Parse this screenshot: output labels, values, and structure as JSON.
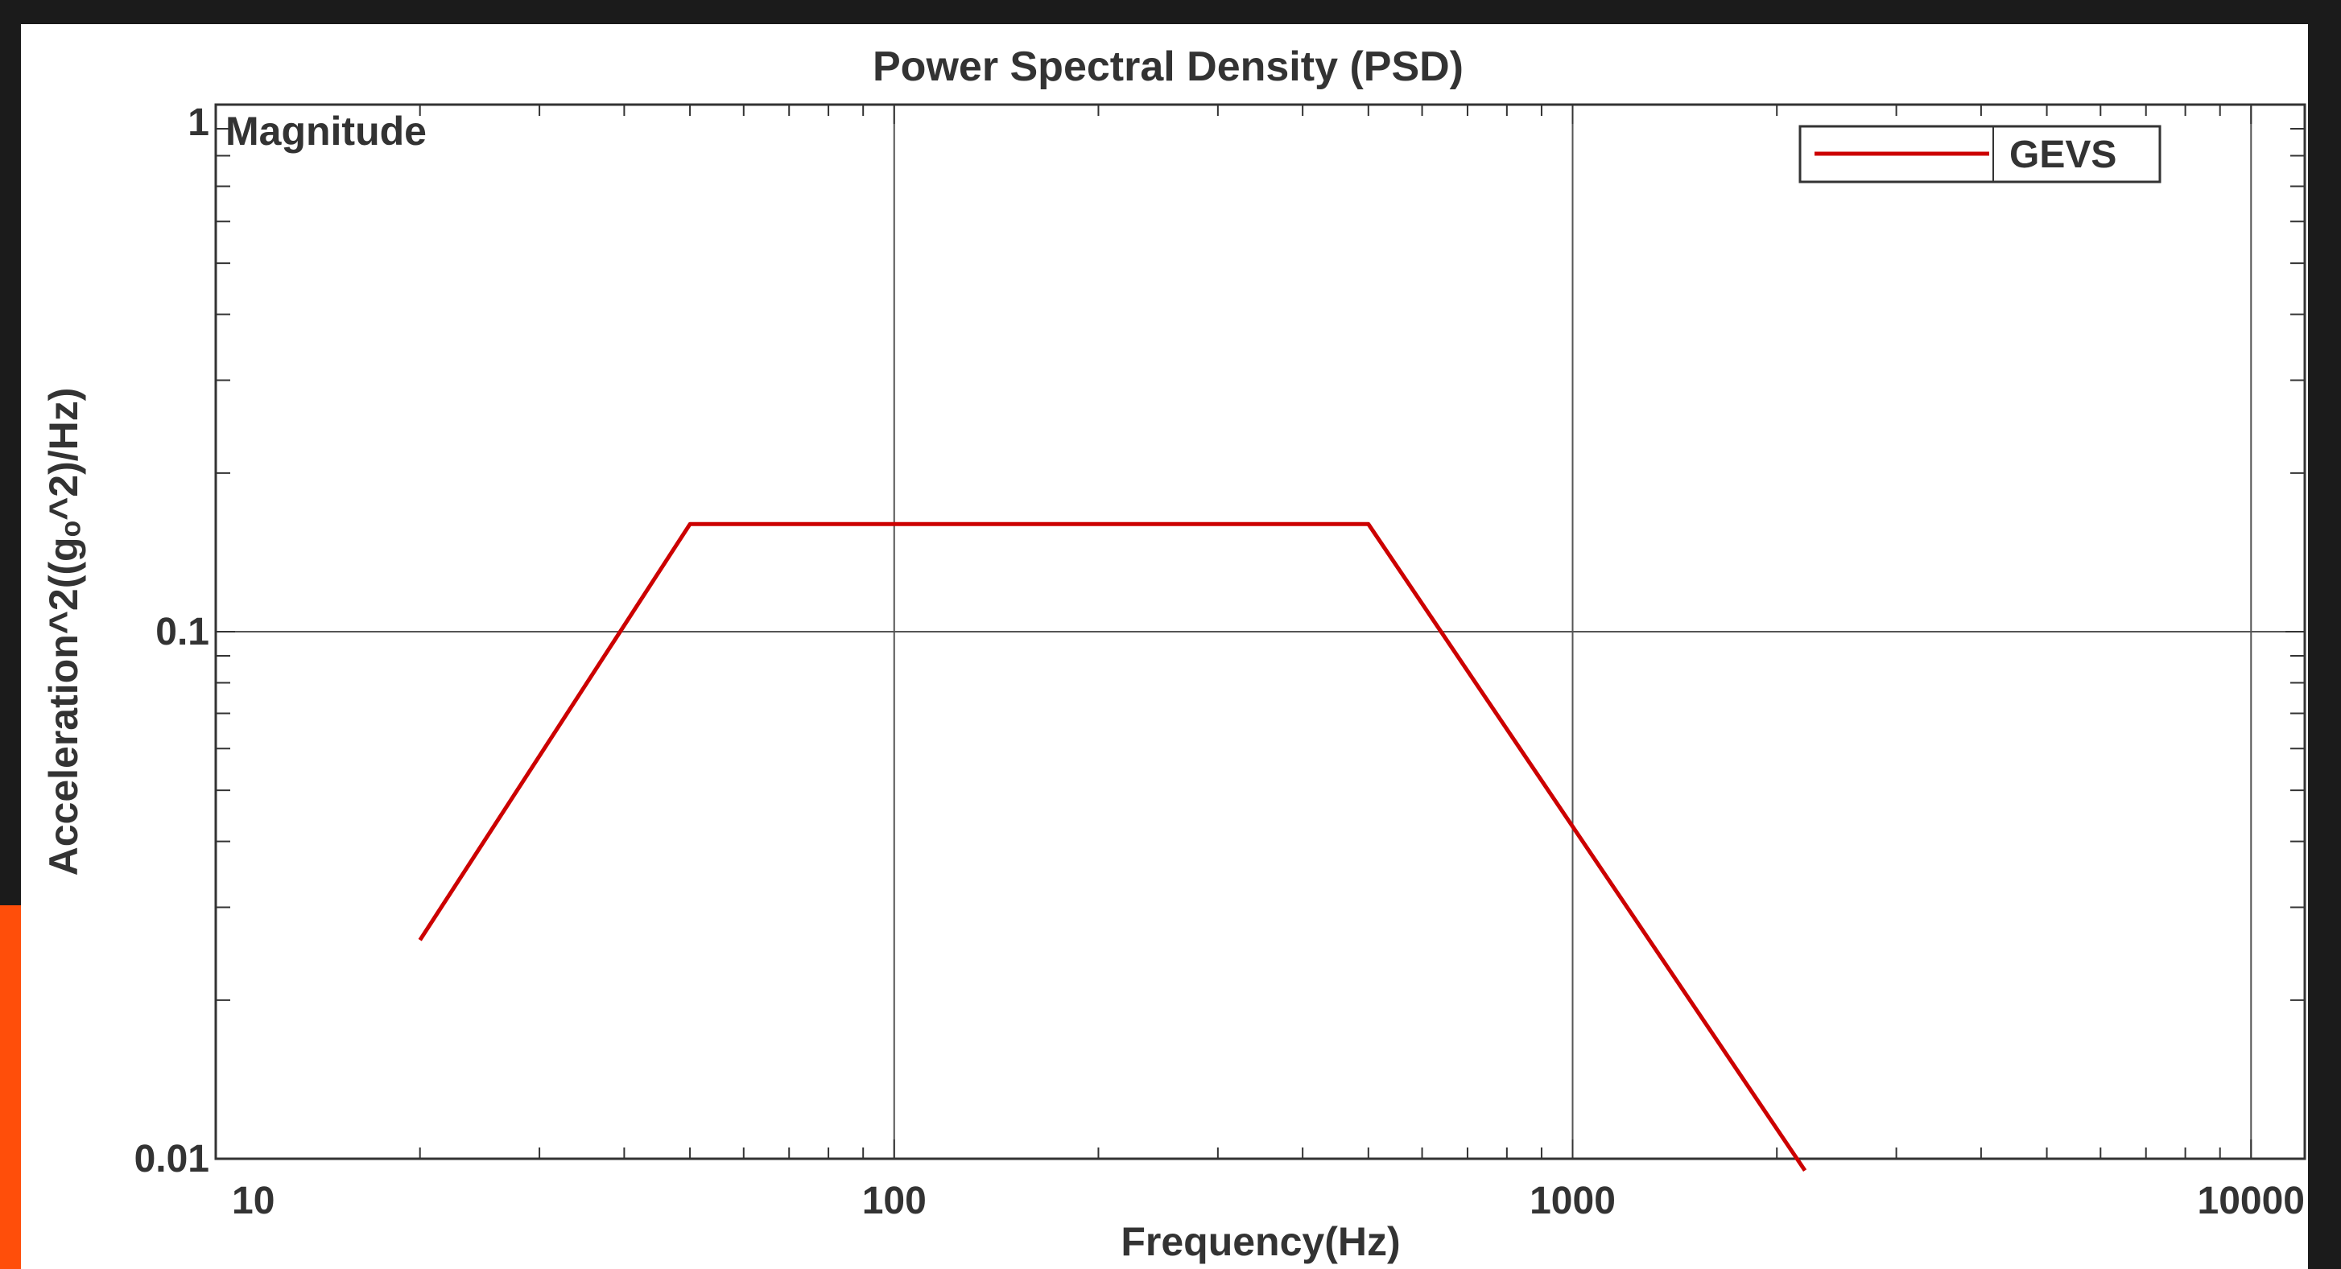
{
  "theme": {
    "background": "#1b1b1b",
    "plot_background": "#ffffff",
    "accent": "#ff4e0a",
    "series_color": "#cc0000",
    "grid_color": "#555555",
    "axis_color": "#333333"
  },
  "chart_data": {
    "type": "line",
    "title": "Power Spectral Density (PSD)",
    "xlabel": "Frequency(Hz)",
    "ylabel": "Acceleration^2((gₒ^2)/Hz)",
    "corner_label": "Magnitude",
    "xscale": "log",
    "yscale": "log",
    "xlim": [
      10,
      12000
    ],
    "ylim": [
      0.01,
      1
    ],
    "xticks": [
      10,
      100,
      1000,
      10000
    ],
    "xtick_labels": [
      "10",
      "100",
      "1000",
      "10000"
    ],
    "yticks": [
      0.01,
      0.1,
      1
    ],
    "ytick_labels": [
      "0.01",
      "0.1",
      "1"
    ],
    "grid": true,
    "legend_position": "top-right",
    "series": [
      {
        "name": "GEVS",
        "color": "#cc0000",
        "x": [
          20,
          50,
          500,
          2200
        ],
        "y": [
          0.026,
          0.16,
          0.16,
          0.0095
        ]
      }
    ]
  }
}
